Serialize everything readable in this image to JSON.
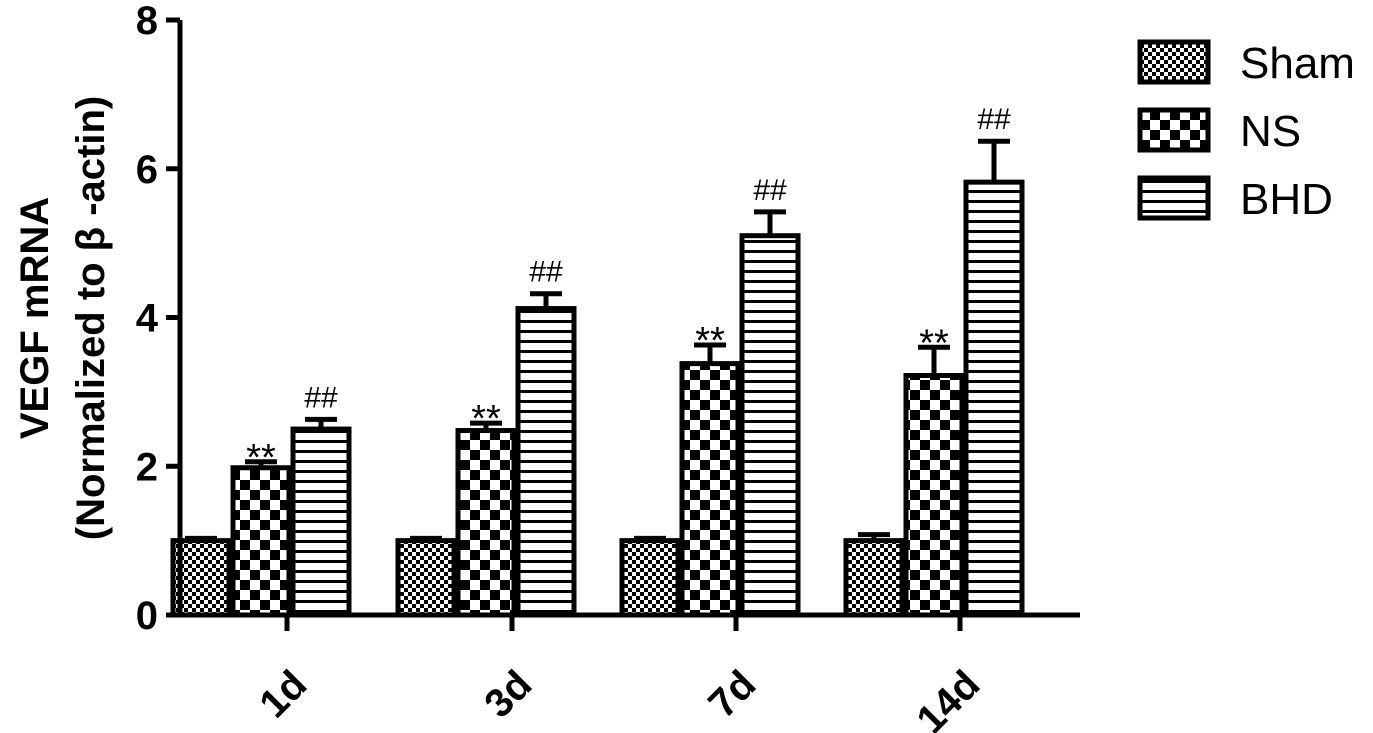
{
  "chart_data": {
    "type": "bar",
    "categories": [
      "1d",
      "3d",
      "7d",
      "14d"
    ],
    "ylabel_line1": "VEGF mRNA",
    "ylabel_line2": "(Normalized to  β -actin)",
    "ylim": [
      0,
      8
    ],
    "yticks": [
      0,
      2,
      4,
      6,
      8
    ],
    "legend_position": "top-right",
    "series": [
      {
        "name": "Sham",
        "pattern": "fine-checker",
        "values": [
          1.0,
          1.0,
          1.0,
          1.0
        ],
        "errors": [
          0.03,
          0.03,
          0.03,
          0.08
        ],
        "annotations": [
          "",
          "",
          "",
          ""
        ]
      },
      {
        "name": "NS",
        "pattern": "coarse-checker",
        "values": [
          1.98,
          2.48,
          3.38,
          3.22
        ],
        "errors": [
          0.08,
          0.1,
          0.25,
          0.38
        ],
        "annotations": [
          "**",
          "**",
          "**",
          "**"
        ]
      },
      {
        "name": "BHD",
        "pattern": "horizontal-stripes",
        "values": [
          2.5,
          4.12,
          5.1,
          5.82
        ],
        "errors": [
          0.13,
          0.2,
          0.32,
          0.55
        ],
        "annotations": [
          "##",
          "##",
          "##",
          "##"
        ]
      }
    ]
  }
}
